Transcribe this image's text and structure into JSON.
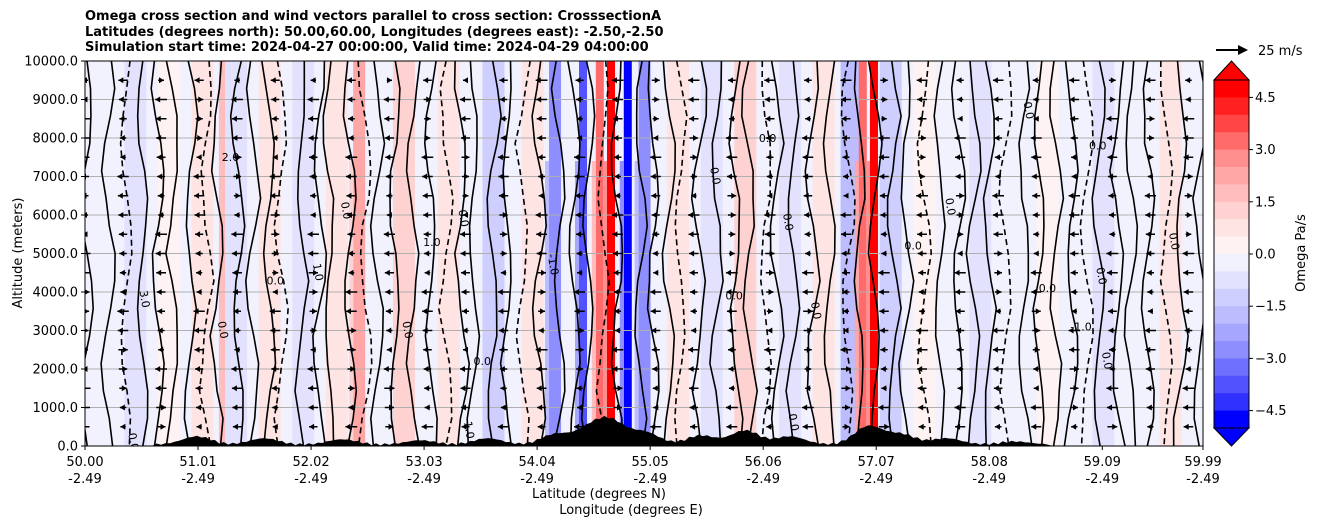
{
  "chart_data": {
    "type": "contourf",
    "title_lines": [
      "Omega cross section and wind vectors parallel to cross section: CrosssectionA",
      "Latitudes (degrees north): 50.00,60.00, Longitudes (degrees east): -2.50,-2.50",
      "Simulation start time: 2024-04-27 00:00:00, Valid time: 2024-04-29 04:00:00"
    ],
    "xlabel_lines": [
      "Latitude (degrees N)",
      "Longitude (degrees E)"
    ],
    "ylabel": "Altitude (meters)",
    "ylim": [
      0,
      10000
    ],
    "y_ticks": [
      0,
      1000,
      2000,
      3000,
      4000,
      5000,
      6000,
      7000,
      8000,
      9000,
      10000
    ],
    "y_tick_labels": [
      "0.0",
      "1000.0",
      "2000.0",
      "3000.0",
      "4000.0",
      "5000.0",
      "6000.0",
      "7000.0",
      "8000.0",
      "9000.0",
      "10000.0"
    ],
    "x_tick_lat": [
      "50.00",
      "51.01",
      "52.02",
      "53.03",
      "54.04",
      "55.05",
      "56.06",
      "57.07",
      "58.08",
      "59.09",
      "59.99"
    ],
    "x_tick_lon": [
      "-2.49",
      "-2.49",
      "-2.49",
      "-2.49",
      "-2.49",
      "-2.49",
      "-2.49",
      "-2.49",
      "-2.49",
      "-2.49",
      "-2.49"
    ],
    "lat_range": [
      50.0,
      59.99
    ],
    "colorbar": {
      "label": "Omega Pa/s",
      "vmin": -5.0,
      "vmax": 5.0,
      "tick_values": [
        4.5,
        3.0,
        1.5,
        0.0,
        -1.5,
        -3.0,
        -4.5
      ],
      "tick_labels": [
        "4.5",
        "3.0",
        "1.5",
        "0.0",
        "−1.5",
        "−3.0",
        "−4.5"
      ],
      "colors_top_to_bottom": [
        "#ff0000",
        "#ff2020",
        "#ff4545",
        "#ff6a6a",
        "#ff8e8e",
        "#ffa6a6",
        "#ffbdbd",
        "#ffd2d2",
        "#ffe4e4",
        "#fff2f2",
        "#f2f2ff",
        "#e2e2ff",
        "#cfcfff",
        "#bcbcff",
        "#a6a6ff",
        "#8e8eff",
        "#7070ff",
        "#5252ff",
        "#3030ff",
        "#0000ff"
      ]
    },
    "vector_key": "25 m/s",
    "omega_columns": [
      {
        "lat": 50.45,
        "value": -0.6
      },
      {
        "lat": 50.75,
        "value": 0.5
      },
      {
        "lat": 51.05,
        "value": 0.7
      },
      {
        "lat": 51.25,
        "value": 2.0
      },
      {
        "lat": 51.35,
        "value": -0.8
      },
      {
        "lat": 51.65,
        "value": 0.6
      },
      {
        "lat": 51.95,
        "value": -0.9
      },
      {
        "lat": 52.25,
        "value": 0.8
      },
      {
        "lat": 52.45,
        "value": 2.2
      },
      {
        "lat": 52.85,
        "value": 1.5
      },
      {
        "lat": 53.25,
        "value": 0.6
      },
      {
        "lat": 53.65,
        "value": -1.2
      },
      {
        "lat": 54.0,
        "value": 1.0
      },
      {
        "lat": 54.2,
        "value": -2.5
      },
      {
        "lat": 54.45,
        "value": -3.5
      },
      {
        "lat": 54.6,
        "value": 3.2
      },
      {
        "lat": 54.7,
        "value": 5.0
      },
      {
        "lat": 54.85,
        "value": -4.5
      },
      {
        "lat": 55.0,
        "value": -2.5
      },
      {
        "lat": 55.3,
        "value": 0.6
      },
      {
        "lat": 55.6,
        "value": -0.7
      },
      {
        "lat": 55.9,
        "value": 1.3
      },
      {
        "lat": 56.3,
        "value": -0.6
      },
      {
        "lat": 56.6,
        "value": 0.8
      },
      {
        "lat": 56.85,
        "value": -1.5
      },
      {
        "lat": 56.95,
        "value": 3.5
      },
      {
        "lat": 57.05,
        "value": 4.8
      },
      {
        "lat": 57.2,
        "value": -1.0
      },
      {
        "lat": 57.5,
        "value": 0.5
      },
      {
        "lat": 58.0,
        "value": -0.5
      },
      {
        "lat": 58.6,
        "value": 0.4
      },
      {
        "lat": 59.1,
        "value": -0.6
      },
      {
        "lat": 59.7,
        "value": 0.7
      }
    ],
    "contour_labels": [
      {
        "lat": 51.3,
        "alt": 7400,
        "text": "2.0"
      },
      {
        "lat": 50.5,
        "alt": 3800,
        "text": "3.0"
      },
      {
        "lat": 52.05,
        "alt": 4500,
        "text": "1.0"
      },
      {
        "lat": 53.1,
        "alt": 5200,
        "text": "1.0"
      },
      {
        "lat": 53.4,
        "alt": 400,
        "text": "1.0"
      },
      {
        "lat": 52.3,
        "alt": 6100,
        "text": "0.0"
      },
      {
        "lat": 51.7,
        "alt": 4200,
        "text": "0.0"
      },
      {
        "lat": 52.85,
        "alt": 3000,
        "text": "0.0"
      },
      {
        "lat": 53.35,
        "alt": 5900,
        "text": "0.0"
      },
      {
        "lat": 53.55,
        "alt": 2100,
        "text": "0.0"
      },
      {
        "lat": 54.15,
        "alt": 4700,
        "text": "-1.0"
      },
      {
        "lat": 55.6,
        "alt": 7000,
        "text": "0.0"
      },
      {
        "lat": 56.1,
        "alt": 7900,
        "text": "0.0"
      },
      {
        "lat": 56.25,
        "alt": 5800,
        "text": "0.0"
      },
      {
        "lat": 56.5,
        "alt": 3500,
        "text": "0.0"
      },
      {
        "lat": 57.4,
        "alt": 5100,
        "text": "0.0"
      },
      {
        "lat": 57.7,
        "alt": 6200,
        "text": "0.0"
      },
      {
        "lat": 58.4,
        "alt": 8700,
        "text": "0.0"
      },
      {
        "lat": 59.05,
        "alt": 7700,
        "text": "0.0"
      },
      {
        "lat": 59.1,
        "alt": 2200,
        "text": "0.0"
      },
      {
        "lat": 59.05,
        "alt": 4400,
        "text": "0.0"
      },
      {
        "lat": 58.9,
        "alt": 3000,
        "text": "-1.0"
      },
      {
        "lat": 56.3,
        "alt": 600,
        "text": "0.0"
      },
      {
        "lat": 50.4,
        "alt": 100,
        "text": "0.0"
      },
      {
        "lat": 58.6,
        "alt": 4000,
        "text": "0.0"
      },
      {
        "lat": 59.7,
        "alt": 5300,
        "text": "0.0"
      },
      {
        "lat": 51.2,
        "alt": 3000,
        "text": "0.0"
      },
      {
        "lat": 55.8,
        "alt": 3800,
        "text": "0.0"
      }
    ]
  }
}
